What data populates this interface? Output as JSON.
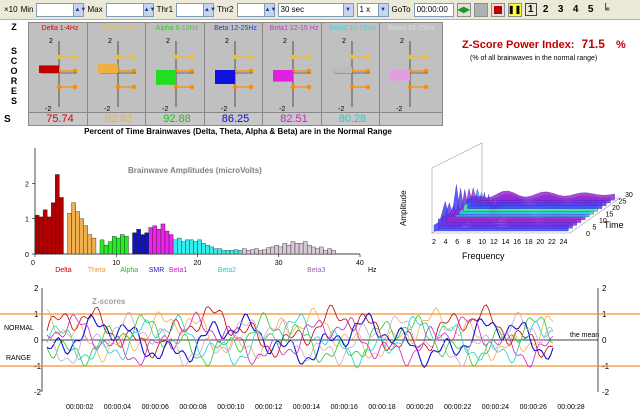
{
  "toolbar": {
    "times_label": "×10",
    "min_label": "Min",
    "min_value": "",
    "max_label": "Max",
    "max_value": "",
    "thr1_label": "Thr1",
    "thr1_value": "",
    "thr2_label": "Thr2",
    "thr2_value": "",
    "window_value": "30 sec",
    "speed_value": "1 x",
    "goto_label": "GoTo",
    "goto_value": "00:00:00",
    "page_numbers": [
      "1",
      "2",
      "3",
      "4",
      "5"
    ]
  },
  "zscores": {
    "side_letters": [
      "Z",
      "S",
      "C",
      "O",
      "R",
      "E",
      "S"
    ],
    "row_label": "S",
    "axis_top": "2",
    "axis_bottom": "-2",
    "boxes": [
      {
        "title": "Delta 1-4Hz",
        "title_color": "#e00000",
        "bar_color": "#c00000",
        "value": "75.74",
        "value_color": "#e00000",
        "score": 0.1
      },
      {
        "title": "Theta 4-8Hz",
        "title_color": "#f0c060",
        "bar_color": "#f0b040",
        "value": "82.83",
        "value_color": "#f0b040",
        "score": 0.2
      },
      {
        "title": "Alpha 8-12Hz",
        "title_color": "#33cc33",
        "bar_color": "#22dd22",
        "value": "92.88",
        "value_color": "#22bb22",
        "score": -0.55
      },
      {
        "title": "Beta 12-25Hz",
        "title_color": "#2040e0",
        "bar_color": "#1010e0",
        "value": "86.25",
        "value_color": "#1010c0",
        "score": -0.5
      },
      {
        "title": "Beta1 12-15 Hz",
        "title_color": "#cc33cc",
        "bar_color": "#dd22dd",
        "value": "82.51",
        "value_color": "#cc22cc",
        "score": -0.35
      },
      {
        "title": "Beta2 15-18Hz",
        "title_color": "#33dddd",
        "bar_color": "#bbbbbb",
        "value": "80.28",
        "value_color": "#22cccc",
        "score": 0.0
      },
      {
        "title": "Beta3 18-25Hz",
        "title_color": "#dddddd",
        "bar_color": "#e0a0e0",
        "value": "",
        "value_color": "#aaaaaa",
        "score": -0.3
      }
    ],
    "caption": "Percent of Time Brainwaves (Delta, Theta, Alpha & Beta) are in the Normal Range"
  },
  "power_index": {
    "title": "Z-Score Power Index:",
    "value": "71.5",
    "unit": "%",
    "subtitle": "(% of all brainwaves in the normal range)"
  },
  "chart_data": [
    {
      "type": "bar",
      "title": "Brainwave Amplitudes (microVolts)",
      "xlabel": "Hz",
      "xlim": [
        0,
        40
      ],
      "ylim": [
        0,
        3
      ],
      "yticks": [
        "0",
        "1",
        "2"
      ],
      "xticks": [
        "0",
        "10",
        "20",
        "30",
        "40"
      ],
      "band_labels": [
        {
          "name": "Delta",
          "color": "#c00000",
          "hz": 2
        },
        {
          "name": "Theta",
          "color": "#e0a040",
          "hz": 6
        },
        {
          "name": "Alpha",
          "color": "#22bb22",
          "hz": 10
        },
        {
          "name": "SMR",
          "color": "#2020c0",
          "hz": 13.5
        },
        {
          "name": "Beta1",
          "color": "#cc22cc",
          "hz": 16
        },
        {
          "name": "Beta2",
          "color": "#22cccc",
          "hz": 22
        },
        {
          "name": "Beta3",
          "color": "#9966aa",
          "hz": 33
        }
      ],
      "bins": [
        {
          "hz": 0.5,
          "value": 1.1,
          "color": "#b00000"
        },
        {
          "hz": 1.0,
          "value": 1.05,
          "color": "#b00000"
        },
        {
          "hz": 1.5,
          "value": 1.25,
          "color": "#b00000"
        },
        {
          "hz": 2.0,
          "value": 1.05,
          "color": "#b00000"
        },
        {
          "hz": 2.5,
          "value": 1.45,
          "color": "#b00000"
        },
        {
          "hz": 3.0,
          "value": 2.25,
          "color": "#b00000"
        },
        {
          "hz": 3.5,
          "value": 1.6,
          "color": "#b00000"
        },
        {
          "hz": 4.5,
          "value": 1.15,
          "color": "#f0b050"
        },
        {
          "hz": 5.0,
          "value": 1.45,
          "color": "#f0b050"
        },
        {
          "hz": 5.5,
          "value": 1.2,
          "color": "#f0b050"
        },
        {
          "hz": 6.0,
          "value": 1.0,
          "color": "#f0b050"
        },
        {
          "hz": 6.5,
          "value": 0.8,
          "color": "#f0b050"
        },
        {
          "hz": 7.0,
          "value": 0.55,
          "color": "#f0b050"
        },
        {
          "hz": 7.5,
          "value": 0.45,
          "color": "#f0b050"
        },
        {
          "hz": 8.5,
          "value": 0.4,
          "color": "#22ee22"
        },
        {
          "hz": 9.0,
          "value": 0.25,
          "color": "#22ee22"
        },
        {
          "hz": 9.5,
          "value": 0.35,
          "color": "#22ee22"
        },
        {
          "hz": 10.0,
          "value": 0.5,
          "color": "#22ee22"
        },
        {
          "hz": 10.5,
          "value": 0.45,
          "color": "#22ee22"
        },
        {
          "hz": 11.0,
          "value": 0.55,
          "color": "#22ee22"
        },
        {
          "hz": 11.5,
          "value": 0.5,
          "color": "#22ee22"
        },
        {
          "hz": 12.5,
          "value": 0.6,
          "color": "#1010d0"
        },
        {
          "hz": 13.0,
          "value": 0.7,
          "color": "#1010d0"
        },
        {
          "hz": 13.5,
          "value": 0.55,
          "color": "#1010d0"
        },
        {
          "hz": 14.0,
          "value": 0.6,
          "color": "#1010d0"
        },
        {
          "hz": 14.5,
          "value": 0.75,
          "color": "#ee22ee"
        },
        {
          "hz": 15.0,
          "value": 0.8,
          "color": "#ee22ee"
        },
        {
          "hz": 15.5,
          "value": 0.7,
          "color": "#ee22ee"
        },
        {
          "hz": 16.0,
          "value": 0.85,
          "color": "#ee22ee"
        },
        {
          "hz": 16.5,
          "value": 0.65,
          "color": "#ee22ee"
        },
        {
          "hz": 17.0,
          "value": 0.55,
          "color": "#ee22ee"
        },
        {
          "hz": 17.5,
          "value": 0.4,
          "color": "#33eeee"
        },
        {
          "hz": 18.0,
          "value": 0.45,
          "color": "#33eeee"
        },
        {
          "hz": 18.5,
          "value": 0.35,
          "color": "#33eeee"
        },
        {
          "hz": 19.0,
          "value": 0.4,
          "color": "#33eeee"
        },
        {
          "hz": 19.5,
          "value": 0.4,
          "color": "#33eeee"
        },
        {
          "hz": 20.0,
          "value": 0.35,
          "color": "#33eeee"
        },
        {
          "hz": 20.5,
          "value": 0.4,
          "color": "#33eeee"
        },
        {
          "hz": 21.0,
          "value": 0.3,
          "color": "#33eeee"
        },
        {
          "hz": 21.5,
          "value": 0.25,
          "color": "#33eeee"
        },
        {
          "hz": 22.0,
          "value": 0.2,
          "color": "#33eeee"
        },
        {
          "hz": 22.5,
          "value": 0.15,
          "color": "#33eeee"
        },
        {
          "hz": 23.0,
          "value": 0.15,
          "color": "#33eeee"
        },
        {
          "hz": 23.5,
          "value": 0.1,
          "color": "#33eeee"
        },
        {
          "hz": 24.0,
          "value": 0.1,
          "color": "#33eeee"
        },
        {
          "hz": 24.5,
          "value": 0.1,
          "color": "#33eeee"
        },
        {
          "hz": 25.0,
          "value": 0.12,
          "color": "#33eeee"
        },
        {
          "hz": 25.5,
          "value": 0.1,
          "color": "#33eeee"
        },
        {
          "hz": 26.0,
          "value": 0.15,
          "color": "#d8c8d8"
        },
        {
          "hz": 26.5,
          "value": 0.1,
          "color": "#d8c8d8"
        },
        {
          "hz": 27.0,
          "value": 0.12,
          "color": "#d8c8d8"
        },
        {
          "hz": 27.5,
          "value": 0.15,
          "color": "#d8c8d8"
        },
        {
          "hz": 28.0,
          "value": 0.1,
          "color": "#d8c8d8"
        },
        {
          "hz": 28.5,
          "value": 0.12,
          "color": "#d8c8d8"
        },
        {
          "hz": 29.0,
          "value": 0.18,
          "color": "#d8c8d8"
        },
        {
          "hz": 29.5,
          "value": 0.2,
          "color": "#d8c8d8"
        },
        {
          "hz": 30.0,
          "value": 0.25,
          "color": "#d8c8d8"
        },
        {
          "hz": 30.5,
          "value": 0.2,
          "color": "#d8c8d8"
        },
        {
          "hz": 31.0,
          "value": 0.3,
          "color": "#d8c8d8"
        },
        {
          "hz": 31.5,
          "value": 0.25,
          "color": "#d8c8d8"
        },
        {
          "hz": 32.0,
          "value": 0.35,
          "color": "#d8c8d8"
        },
        {
          "hz": 32.5,
          "value": 0.3,
          "color": "#d8c8d8"
        },
        {
          "hz": 33.0,
          "value": 0.3,
          "color": "#d8c8d8"
        },
        {
          "hz": 33.5,
          "value": 0.35,
          "color": "#d8c8d8"
        },
        {
          "hz": 34.0,
          "value": 0.25,
          "color": "#d8c8d8"
        },
        {
          "hz": 34.5,
          "value": 0.2,
          "color": "#d8c8d8"
        },
        {
          "hz": 35.0,
          "value": 0.15,
          "color": "#d8c8d8"
        },
        {
          "hz": 35.5,
          "value": 0.2,
          "color": "#d8c8d8"
        },
        {
          "hz": 36.0,
          "value": 0.1,
          "color": "#d8c8d8"
        },
        {
          "hz": 36.5,
          "value": 0.15,
          "color": "#d8c8d8"
        },
        {
          "hz": 37.0,
          "value": 0.1,
          "color": "#d8c8d8"
        }
      ]
    },
    {
      "type": "heatmap",
      "title": "",
      "xlabel": "Frequency",
      "ylabel": "Time",
      "zlabel": "Amplitude",
      "xticks": [
        "2",
        "4",
        "6",
        "8",
        "10",
        "12",
        "14",
        "16",
        "18",
        "20",
        "22",
        "24"
      ],
      "yticks": [
        "0",
        "5",
        "10",
        "15",
        "20",
        "25",
        "30"
      ]
    },
    {
      "type": "line",
      "title": "Z-scores",
      "ylim": [
        -2,
        2
      ],
      "yticks": [
        "2",
        "1",
        "0",
        "-1",
        "-2"
      ],
      "normal_label_top": "NORMAL",
      "normal_label_bottom": "RANGE",
      "mean_label": "the mean",
      "xticks": [
        "00:00:02",
        "00:00:04",
        "00:00:06",
        "00:00:08",
        "00:00:10",
        "00:00:12",
        "00:00:14",
        "00:00:16",
        "00:00:18",
        "00:00:20",
        "00:00:22",
        "00:00:24",
        "00:00:26",
        "00:00:28"
      ],
      "series_colors": [
        "#c00000",
        "#f0b050",
        "#22cc22",
        "#1010d0",
        "#cc22cc",
        "#22cccc",
        "#c8a8c8"
      ]
    }
  ]
}
